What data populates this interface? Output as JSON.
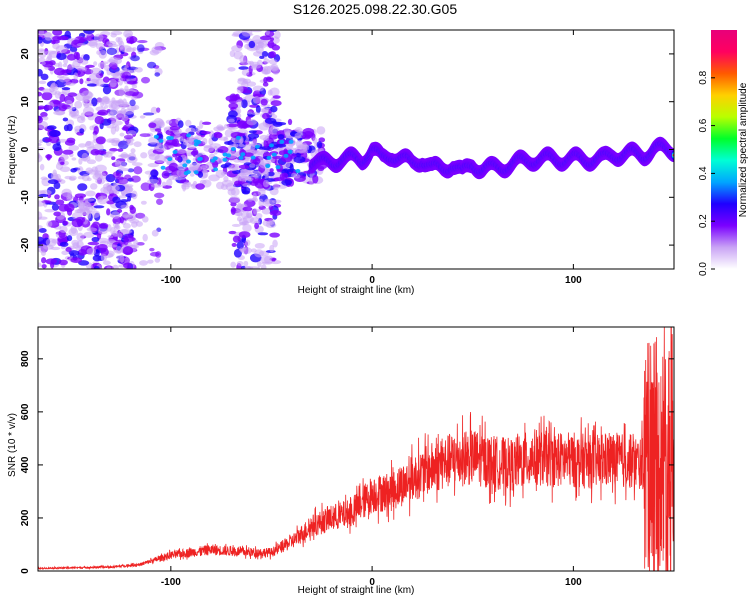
{
  "title": "S126.2025.098.22.30.G05",
  "chart_data": [
    {
      "type": "heatmap",
      "xlabel": "Height of straight line (km)",
      "ylabel": "Frequency (Hz)",
      "xlim": [
        -166,
        150
      ],
      "ylim": [
        -25,
        25
      ],
      "x_ticks": [
        -100,
        0,
        100
      ],
      "y_ticks": [
        -20,
        -10,
        0,
        10,
        20
      ],
      "colorbar": {
        "label": "Normalized spectral amplitude",
        "range": [
          0,
          1
        ],
        "ticks": [
          "0.0",
          "0.2",
          "0.4",
          "0.6",
          "0.8"
        ],
        "colors": [
          "#ffffff",
          "#c9a3f5",
          "#7a00ff",
          "#1f00ff",
          "#00a6ff",
          "#00ffd5",
          "#00ff2a",
          "#b9ff00",
          "#ffd000",
          "#ff5a00",
          "#ff0060",
          "#e8007a"
        ]
      },
      "ridge": {
        "x": [
          -35,
          -25,
          -15,
          -5,
          0,
          5,
          10,
          15,
          20,
          25,
          30,
          35,
          40,
          45,
          50,
          55,
          60,
          70,
          80,
          90,
          100,
          110,
          115,
          120,
          125,
          130,
          135,
          140,
          145
        ],
        "y": [
          -2,
          -3,
          -2,
          -2,
          0,
          -2,
          -1,
          -2,
          -3,
          -2,
          -4,
          -4,
          -3,
          -5,
          -3,
          -4,
          -4,
          -3,
          -2,
          -2,
          -2,
          -2,
          -2,
          -1,
          -1,
          -1,
          -1,
          0,
          0
        ]
      }
    },
    {
      "type": "line",
      "xlabel": "Height of straight line (km)",
      "ylabel": "SNR (10 * v/v)",
      "xlim": [
        -166,
        150
      ],
      "ylim": [
        0,
        920
      ],
      "x_ticks": [
        -100,
        0,
        100
      ],
      "y_ticks": [
        0,
        200,
        400,
        600,
        800
      ],
      "color": "#ee2222",
      "envelope": {
        "x": [
          -166,
          -130,
          -115,
          -100,
          -80,
          -60,
          -50,
          -40,
          -30,
          -20,
          -10,
          0,
          10,
          20,
          30,
          40,
          50,
          60,
          70,
          80,
          90,
          100,
          110,
          120,
          130,
          140,
          145,
          150
        ],
        "y": [
          10,
          15,
          25,
          60,
          80,
          70,
          70,
          110,
          170,
          200,
          220,
          290,
          300,
          350,
          390,
          420,
          430,
          410,
          400,
          430,
          420,
          420,
          410,
          420,
          410,
          400,
          380,
          400
        ]
      }
    }
  ]
}
